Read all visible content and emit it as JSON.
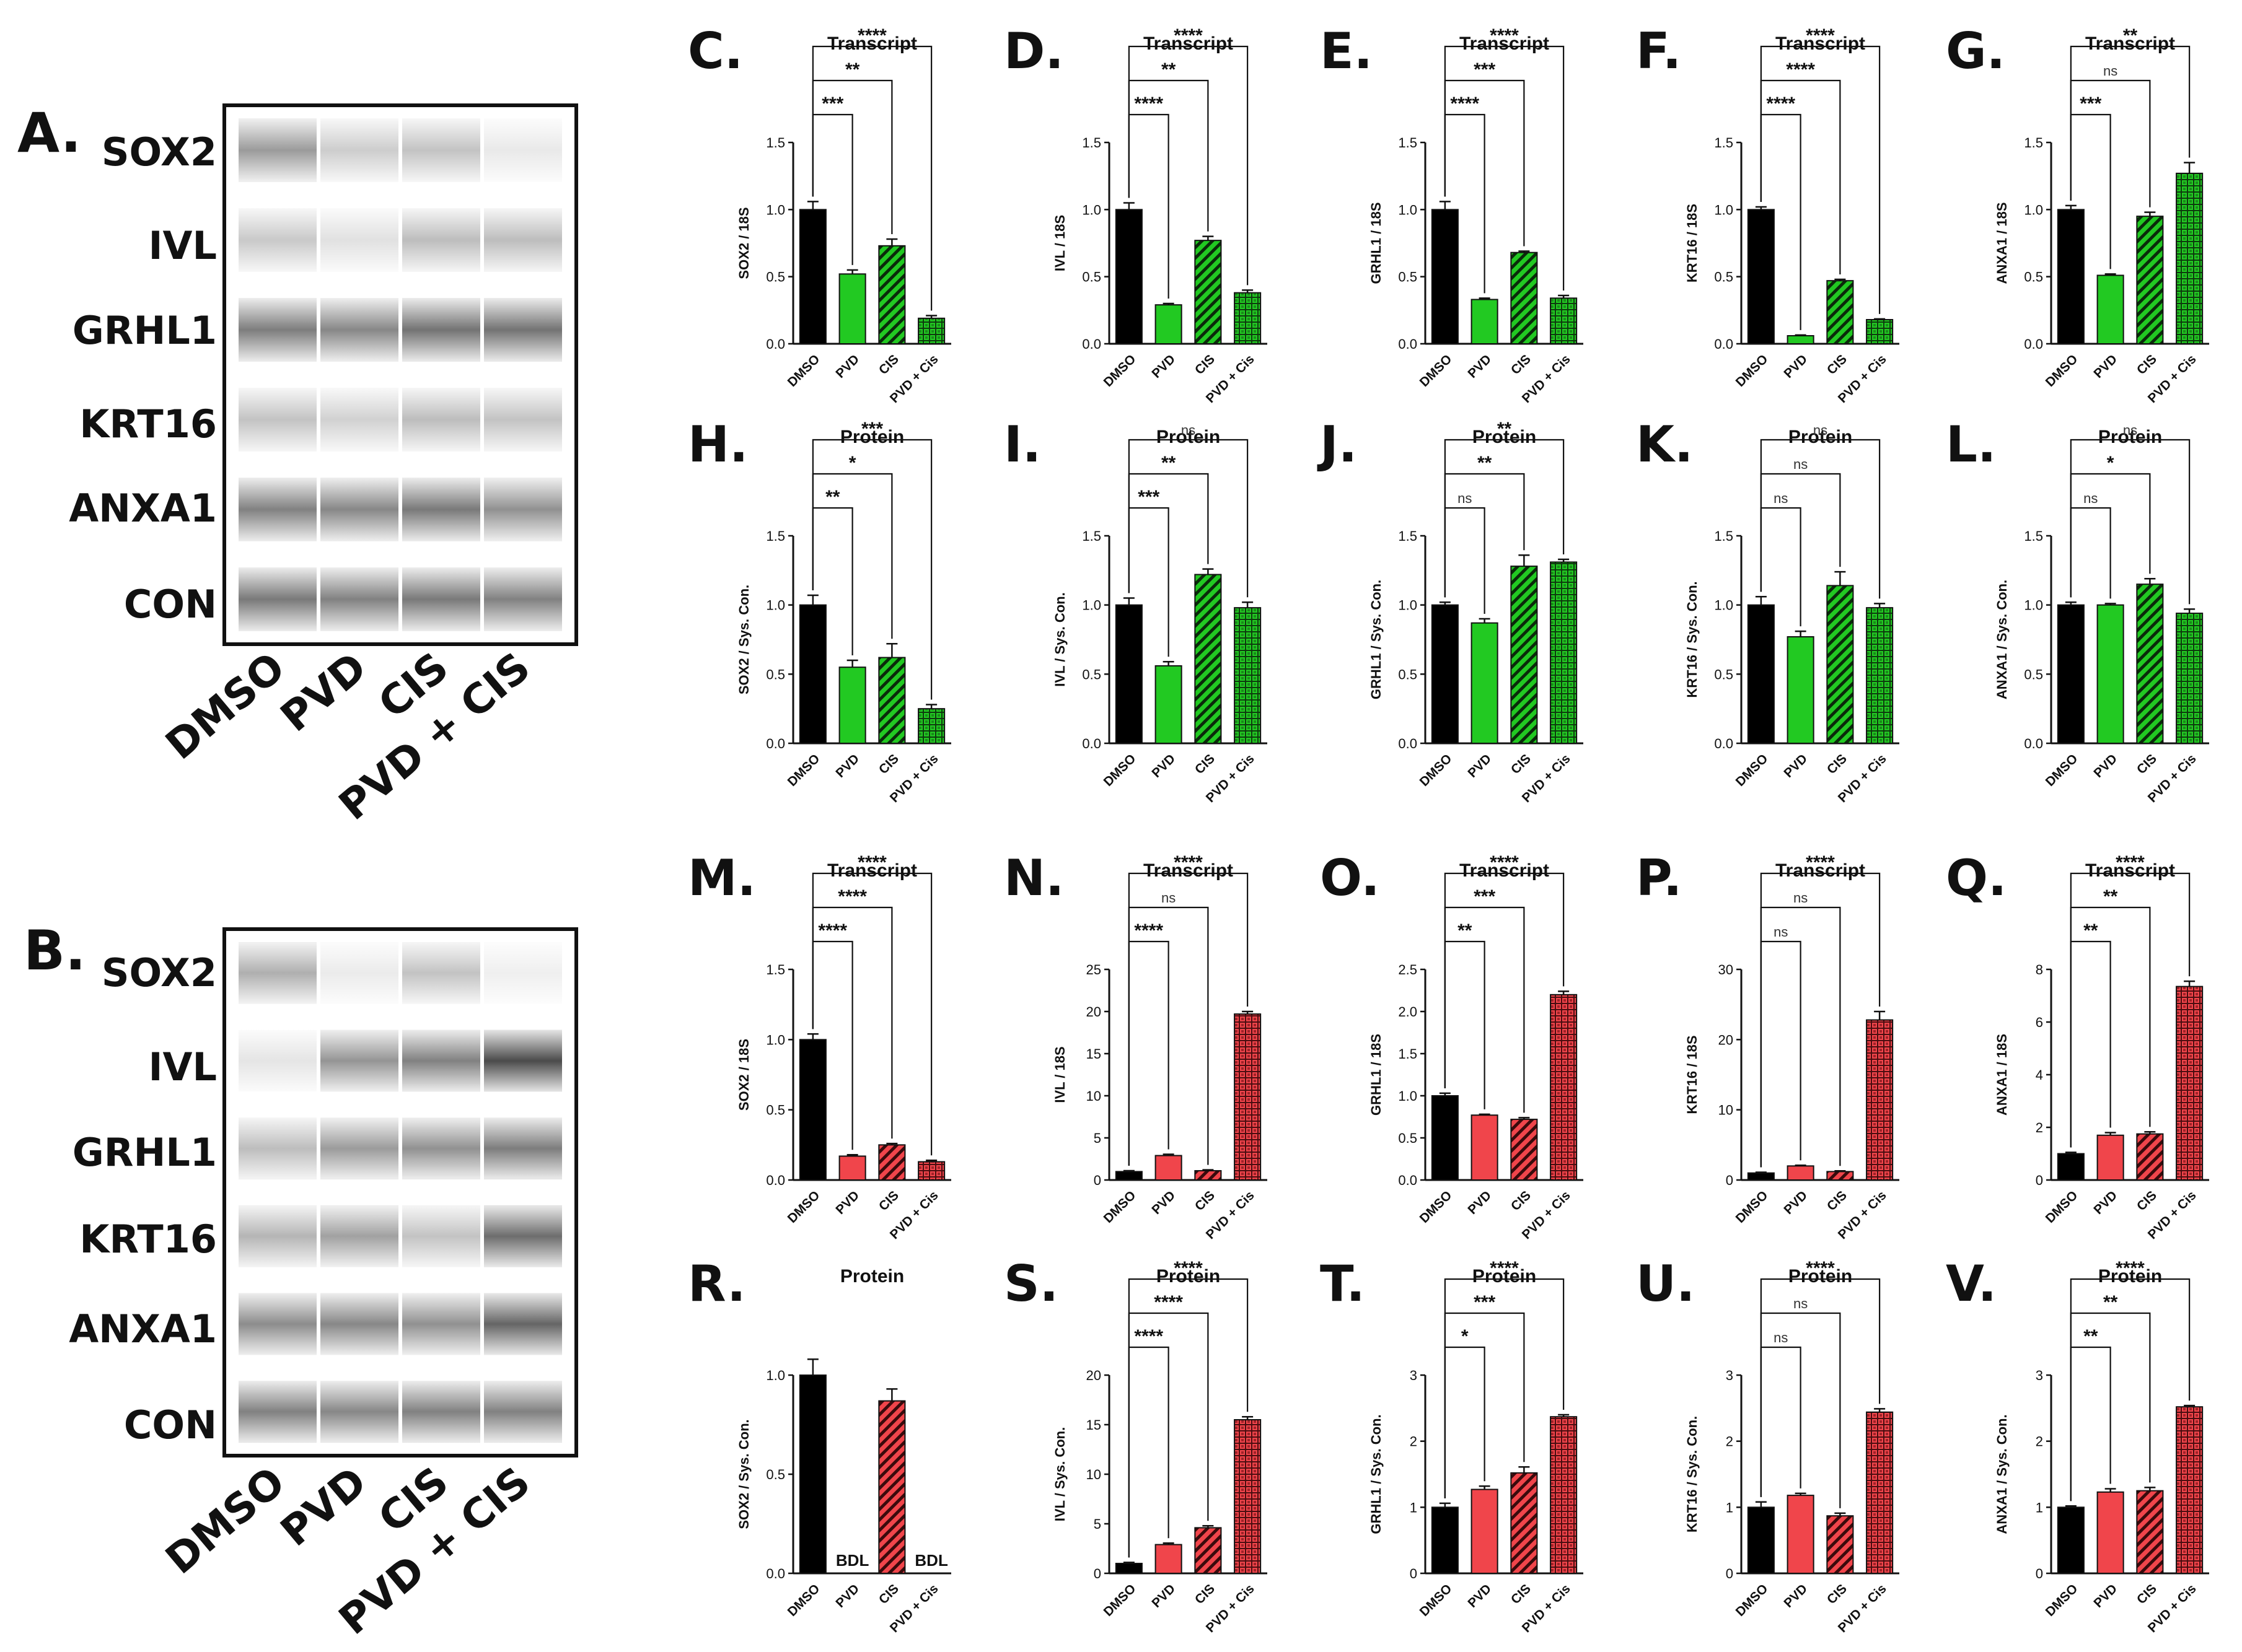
{
  "colors": {
    "control": "#000000",
    "treated_green": "#22c922",
    "treated_red": "#f0454b",
    "axis": "#111111"
  },
  "blots": [
    {
      "label": "A.",
      "lanes": [
        "DMSO",
        "PVD",
        "CIS",
        "PVD + CIS"
      ],
      "bands": [
        {
          "name": "SOX2",
          "intensity": [
            0.45,
            0.2,
            0.25,
            0.06
          ]
        },
        {
          "name": "IVL",
          "intensity": [
            0.22,
            0.1,
            0.28,
            0.28
          ]
        },
        {
          "name": "GRHL1",
          "intensity": [
            0.6,
            0.55,
            0.65,
            0.65
          ]
        },
        {
          "name": "KRT16",
          "intensity": [
            0.25,
            0.18,
            0.28,
            0.25
          ]
        },
        {
          "name": "ANXA1",
          "intensity": [
            0.58,
            0.55,
            0.62,
            0.5
          ]
        },
        {
          "name": "CON",
          "intensity": [
            0.62,
            0.58,
            0.62,
            0.58
          ]
        }
      ]
    },
    {
      "label": "B.",
      "lanes": [
        "DMSO",
        "PVD",
        "CIS",
        "PVD + CIS"
      ],
      "bands": [
        {
          "name": "SOX2",
          "intensity": [
            0.35,
            0.05,
            0.25,
            0.03
          ]
        },
        {
          "name": "IVL",
          "intensity": [
            0.08,
            0.48,
            0.58,
            0.85
          ]
        },
        {
          "name": "GRHL1",
          "intensity": [
            0.28,
            0.45,
            0.5,
            0.6
          ]
        },
        {
          "name": "KRT16",
          "intensity": [
            0.32,
            0.42,
            0.25,
            0.68
          ]
        },
        {
          "name": "ANXA1",
          "intensity": [
            0.52,
            0.55,
            0.5,
            0.72
          ]
        },
        {
          "name": "CON",
          "intensity": [
            0.58,
            0.55,
            0.58,
            0.58
          ]
        }
      ]
    }
  ],
  "chart_data": [
    {
      "panel": "C.",
      "type": "bar",
      "title": "Transcript",
      "ylabel": "SOX2 / 18S",
      "categories": [
        "DMSO",
        "PVD",
        "CIS",
        "PVD + Cis"
      ],
      "values": [
        1.0,
        0.52,
        0.73,
        0.19
      ],
      "errors": [
        0.06,
        0.03,
        0.05,
        0.02
      ],
      "ylim": [
        0,
        1.5
      ],
      "yticks": [
        "0.0",
        "0.5",
        "1.0",
        "1.5"
      ],
      "treated_color": "green",
      "comparisons": [
        {
          "to": 1,
          "label": "***"
        },
        {
          "to": 2,
          "label": "**"
        },
        {
          "to": 3,
          "label": "****"
        }
      ]
    },
    {
      "panel": "D.",
      "type": "bar",
      "title": "Transcript",
      "ylabel": "IVL / 18S",
      "categories": [
        "DMSO",
        "PVD",
        "CIS",
        "PVD + Cis"
      ],
      "values": [
        1.0,
        0.29,
        0.77,
        0.38
      ],
      "errors": [
        0.05,
        0.01,
        0.03,
        0.02
      ],
      "ylim": [
        0,
        1.5
      ],
      "yticks": [
        "0.0",
        "0.5",
        "1.0",
        "1.5"
      ],
      "treated_color": "green",
      "comparisons": [
        {
          "to": 1,
          "label": "****"
        },
        {
          "to": 2,
          "label": "**"
        },
        {
          "to": 3,
          "label": "****"
        }
      ]
    },
    {
      "panel": "E.",
      "type": "bar",
      "title": "Transcript",
      "ylabel": "GRHL1 / 18S",
      "categories": [
        "DMSO",
        "PVD",
        "CIS",
        "PVD + Cis"
      ],
      "values": [
        1.0,
        0.33,
        0.68,
        0.34
      ],
      "errors": [
        0.06,
        0.01,
        0.01,
        0.02
      ],
      "ylim": [
        0,
        1.5
      ],
      "yticks": [
        "0.0",
        "0.5",
        "1.0",
        "1.5"
      ],
      "treated_color": "green",
      "comparisons": [
        {
          "to": 1,
          "label": "****"
        },
        {
          "to": 2,
          "label": "***"
        },
        {
          "to": 3,
          "label": "****"
        }
      ]
    },
    {
      "panel": "F.",
      "type": "bar",
      "title": "Transcript",
      "ylabel": "KRT16 / 18S",
      "categories": [
        "DMSO",
        "PVD",
        "CIS",
        "PVD + Cis"
      ],
      "values": [
        1.0,
        0.06,
        0.47,
        0.18
      ],
      "errors": [
        0.02,
        0.005,
        0.01,
        0.005
      ],
      "ylim": [
        0,
        1.5
      ],
      "yticks": [
        "0.0",
        "0.5",
        "1.0",
        "1.5"
      ],
      "treated_color": "green",
      "comparisons": [
        {
          "to": 1,
          "label": "****"
        },
        {
          "to": 2,
          "label": "****"
        },
        {
          "to": 3,
          "label": "****"
        }
      ]
    },
    {
      "panel": "G.",
      "type": "bar",
      "title": "Transcript",
      "ylabel": "ANXA1 / 18S",
      "categories": [
        "DMSO",
        "PVD",
        "CIS",
        "PVD + Cis"
      ],
      "values": [
        1.0,
        0.51,
        0.95,
        1.27
      ],
      "errors": [
        0.03,
        0.01,
        0.03,
        0.08
      ],
      "ylim": [
        0,
        1.5
      ],
      "yticks": [
        "0.0",
        "0.5",
        "1.0",
        "1.5"
      ],
      "treated_color": "green",
      "comparisons": [
        {
          "to": 1,
          "label": "***"
        },
        {
          "to": 2,
          "label": "ns"
        },
        {
          "to": 3,
          "label": "**"
        }
      ]
    },
    {
      "panel": "H.",
      "type": "bar",
      "title": "Protein",
      "ylabel": "SOX2 / Sys. Con.",
      "categories": [
        "DMSO",
        "PVD",
        "CIS",
        "PVD + Cis"
      ],
      "values": [
        1.0,
        0.55,
        0.62,
        0.25
      ],
      "errors": [
        0.07,
        0.05,
        0.1,
        0.03
      ],
      "ylim": [
        0,
        1.5
      ],
      "yticks": [
        "0.0",
        "0.5",
        "1.0",
        "1.5"
      ],
      "treated_color": "green",
      "comparisons": [
        {
          "to": 1,
          "label": "**"
        },
        {
          "to": 2,
          "label": "*"
        },
        {
          "to": 3,
          "label": "***"
        }
      ]
    },
    {
      "panel": "I.",
      "type": "bar",
      "title": "Protein",
      "ylabel": "IVL / Sys. Con.",
      "categories": [
        "DMSO",
        "PVD",
        "CIS",
        "PVD + Cis"
      ],
      "values": [
        1.0,
        0.56,
        1.22,
        0.98
      ],
      "errors": [
        0.05,
        0.03,
        0.04,
        0.04
      ],
      "ylim": [
        0,
        1.5
      ],
      "yticks": [
        "0.0",
        "0.5",
        "1.0",
        "1.5"
      ],
      "treated_color": "green",
      "comparisons": [
        {
          "to": 1,
          "label": "***"
        },
        {
          "to": 2,
          "label": "**"
        },
        {
          "to": 3,
          "label": "ns"
        }
      ]
    },
    {
      "panel": "J.",
      "type": "bar",
      "title": "Protein",
      "ylabel": "GRHL1 / Sys. Con.",
      "categories": [
        "DMSO",
        "PVD",
        "CIS",
        "PVD + Cis"
      ],
      "values": [
        1.0,
        0.87,
        1.28,
        1.31
      ],
      "errors": [
        0.02,
        0.03,
        0.08,
        0.02
      ],
      "ylim": [
        0,
        1.5
      ],
      "yticks": [
        "0.0",
        "0.5",
        "1.0",
        "1.5"
      ],
      "treated_color": "green",
      "comparisons": [
        {
          "to": 1,
          "label": "ns"
        },
        {
          "to": 2,
          "label": "**"
        },
        {
          "to": 3,
          "label": "**"
        }
      ]
    },
    {
      "panel": "K.",
      "type": "bar",
      "title": "Protein",
      "ylabel": "KRT16 / Sys. Con.",
      "categories": [
        "DMSO",
        "PVD",
        "CIS",
        "PVD + Cis"
      ],
      "values": [
        1.0,
        0.77,
        1.14,
        0.98
      ],
      "errors": [
        0.06,
        0.04,
        0.1,
        0.03
      ],
      "ylim": [
        0,
        1.5
      ],
      "yticks": [
        "0.0",
        "0.5",
        "1.0",
        "1.5"
      ],
      "treated_color": "green",
      "comparisons": [
        {
          "to": 1,
          "label": "ns"
        },
        {
          "to": 2,
          "label": "ns"
        },
        {
          "to": 3,
          "label": "ns"
        }
      ]
    },
    {
      "panel": "L.",
      "type": "bar",
      "title": "Protein",
      "ylabel": "ANXA1 / Sys. Con.",
      "categories": [
        "DMSO",
        "PVD",
        "CIS",
        "PVD + Cis"
      ],
      "values": [
        1.0,
        1.0,
        1.15,
        0.94
      ],
      "errors": [
        0.02,
        0.01,
        0.04,
        0.03
      ],
      "ylim": [
        0,
        1.5
      ],
      "yticks": [
        "0.0",
        "0.5",
        "1.0",
        "1.5"
      ],
      "treated_color": "green",
      "comparisons": [
        {
          "to": 1,
          "label": "ns"
        },
        {
          "to": 2,
          "label": "*"
        },
        {
          "to": 3,
          "label": "ns"
        }
      ]
    },
    {
      "panel": "M.",
      "type": "bar",
      "title": "Transcript",
      "ylabel": "SOX2 / 18S",
      "categories": [
        "DMSO",
        "PVD",
        "CIS",
        "PVD + Cis"
      ],
      "values": [
        1.0,
        0.17,
        0.25,
        0.13
      ],
      "errors": [
        0.04,
        0.01,
        0.01,
        0.01
      ],
      "ylim": [
        0,
        1.5
      ],
      "yticks": [
        "0.0",
        "0.5",
        "1.0",
        "1.5"
      ],
      "treated_color": "red",
      "comparisons": [
        {
          "to": 1,
          "label": "****"
        },
        {
          "to": 2,
          "label": "****"
        },
        {
          "to": 3,
          "label": "****"
        }
      ]
    },
    {
      "panel": "N.",
      "type": "bar",
      "title": "Transcript",
      "ylabel": "IVL / 18S",
      "categories": [
        "DMSO",
        "PVD",
        "CIS",
        "PVD + Cis"
      ],
      "values": [
        1.0,
        2.9,
        1.1,
        19.7
      ],
      "errors": [
        0.1,
        0.15,
        0.1,
        0.3
      ],
      "ylim": [
        0,
        25
      ],
      "yticks": [
        "0",
        "5",
        "10",
        "15",
        "20",
        "25"
      ],
      "treated_color": "red",
      "comparisons": [
        {
          "to": 1,
          "label": "****"
        },
        {
          "to": 2,
          "label": "ns"
        },
        {
          "to": 3,
          "label": "****"
        }
      ]
    },
    {
      "panel": "O.",
      "type": "bar",
      "title": "Transcript",
      "ylabel": "GRHL1 / 18S",
      "categories": [
        "DMSO",
        "PVD",
        "CIS",
        "PVD + Cis"
      ],
      "values": [
        1.0,
        0.77,
        0.72,
        2.2
      ],
      "errors": [
        0.03,
        0.01,
        0.02,
        0.04
      ],
      "ylim": [
        0,
        2.5
      ],
      "yticks": [
        "0.0",
        "0.5",
        "1.0",
        "1.5",
        "2.0",
        "2.5"
      ],
      "treated_color": "red",
      "comparisons": [
        {
          "to": 1,
          "label": "**"
        },
        {
          "to": 2,
          "label": "***"
        },
        {
          "to": 3,
          "label": "****"
        }
      ]
    },
    {
      "panel": "P.",
      "type": "bar",
      "title": "Transcript",
      "ylabel": "KRT16 / 18S",
      "categories": [
        "DMSO",
        "PVD",
        "CIS",
        "PVD + Cis"
      ],
      "values": [
        1.0,
        2.0,
        1.2,
        22.8
      ],
      "errors": [
        0.1,
        0.1,
        0.1,
        1.2
      ],
      "ylim": [
        0,
        30
      ],
      "yticks": [
        "0",
        "10",
        "20",
        "30"
      ],
      "treated_color": "red",
      "comparisons": [
        {
          "to": 1,
          "label": "ns"
        },
        {
          "to": 2,
          "label": "ns"
        },
        {
          "to": 3,
          "label": "****"
        }
      ]
    },
    {
      "panel": "Q.",
      "type": "bar",
      "title": "Transcript",
      "ylabel": "ANXA1 / 18S",
      "categories": [
        "DMSO",
        "PVD",
        "CIS",
        "PVD + Cis"
      ],
      "values": [
        1.0,
        1.7,
        1.75,
        7.35
      ],
      "errors": [
        0.05,
        0.1,
        0.08,
        0.2
      ],
      "ylim": [
        0,
        8
      ],
      "yticks": [
        "0",
        "2",
        "4",
        "6",
        "8"
      ],
      "treated_color": "red",
      "comparisons": [
        {
          "to": 1,
          "label": "**"
        },
        {
          "to": 2,
          "label": "**"
        },
        {
          "to": 3,
          "label": "****"
        }
      ]
    },
    {
      "panel": "R.",
      "type": "bar",
      "title": "Protein",
      "ylabel": "SOX2 / Sys. Con.",
      "categories": [
        "DMSO",
        "PVD",
        "CIS",
        "PVD + Cis"
      ],
      "values": [
        1.0,
        null,
        0.87,
        null
      ],
      "errors": [
        0.08,
        0,
        0.06,
        0
      ],
      "bdl_label": "BDL",
      "ylim": [
        0,
        1.0
      ],
      "yticks": [
        "0.0",
        "0.5",
        "1.0"
      ],
      "treated_color": "red",
      "comparisons": []
    },
    {
      "panel": "S.",
      "type": "bar",
      "title": "Protein",
      "ylabel": "IVL / Sys. Con.",
      "categories": [
        "DMSO",
        "PVD",
        "CIS",
        "PVD + Cis"
      ],
      "values": [
        1.0,
        2.9,
        4.6,
        15.5
      ],
      "errors": [
        0.1,
        0.15,
        0.2,
        0.3
      ],
      "ylim": [
        0,
        20
      ],
      "yticks": [
        "0",
        "5",
        "10",
        "15",
        "20"
      ],
      "treated_color": "red",
      "comparisons": [
        {
          "to": 1,
          "label": "****"
        },
        {
          "to": 2,
          "label": "****"
        },
        {
          "to": 3,
          "label": "****"
        }
      ]
    },
    {
      "panel": "T.",
      "type": "bar",
      "title": "Protein",
      "ylabel": "GRHL1 / Sys. Con.",
      "categories": [
        "DMSO",
        "PVD",
        "CIS",
        "PVD + Cis"
      ],
      "values": [
        1.0,
        1.27,
        1.52,
        2.37
      ],
      "errors": [
        0.06,
        0.05,
        0.09,
        0.03
      ],
      "ylim": [
        0,
        3
      ],
      "yticks": [
        "0",
        "1",
        "2",
        "3"
      ],
      "treated_color": "red",
      "comparisons": [
        {
          "to": 1,
          "label": "*"
        },
        {
          "to": 2,
          "label": "***"
        },
        {
          "to": 3,
          "label": "****"
        }
      ]
    },
    {
      "panel": "U.",
      "type": "bar",
      "title": "Protein",
      "ylabel": "KRT16 / Sys. Con.",
      "categories": [
        "DMSO",
        "PVD",
        "CIS",
        "PVD + Cis"
      ],
      "values": [
        1.0,
        1.18,
        0.87,
        2.44
      ],
      "errors": [
        0.08,
        0.03,
        0.04,
        0.05
      ],
      "ylim": [
        0,
        3
      ],
      "yticks": [
        "0",
        "1",
        "2",
        "3"
      ],
      "treated_color": "red",
      "comparisons": [
        {
          "to": 1,
          "label": "ns"
        },
        {
          "to": 2,
          "label": "ns"
        },
        {
          "to": 3,
          "label": "****"
        }
      ]
    },
    {
      "panel": "V.",
      "type": "bar",
      "title": "Protein",
      "ylabel": "ANXA1 / Sys. Con.",
      "categories": [
        "DMSO",
        "PVD",
        "CIS",
        "PVD + Cis"
      ],
      "values": [
        1.0,
        1.23,
        1.25,
        2.52
      ],
      "errors": [
        0.02,
        0.05,
        0.05,
        0.02
      ],
      "ylim": [
        0,
        3
      ],
      "yticks": [
        "0",
        "1",
        "2",
        "3"
      ],
      "treated_color": "red",
      "comparisons": [
        {
          "to": 1,
          "label": "**"
        },
        {
          "to": 2,
          "label": "**"
        },
        {
          "to": 3,
          "label": "****"
        }
      ]
    }
  ]
}
